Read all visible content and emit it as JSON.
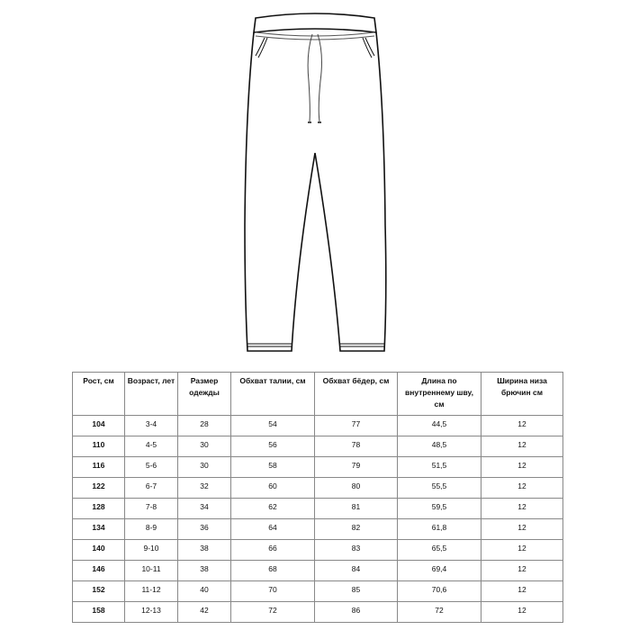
{
  "illustration": {
    "name": "pants-technical-drawing"
  },
  "table": {
    "headers": [
      "Рост, см",
      "Возраст, лет",
      "Размер одежды",
      "Обхват талии, см",
      "Обхват бёдер, см",
      "Длина по внутреннему шву, см",
      "Ширина низа брючин см"
    ],
    "rows": [
      [
        "104",
        "3-4",
        "28",
        "54",
        "77",
        "44,5",
        "12"
      ],
      [
        "110",
        "4-5",
        "30",
        "56",
        "78",
        "48,5",
        "12"
      ],
      [
        "116",
        "5-6",
        "30",
        "58",
        "79",
        "51,5",
        "12"
      ],
      [
        "122",
        "6-7",
        "32",
        "60",
        "80",
        "55,5",
        "12"
      ],
      [
        "128",
        "7-8",
        "34",
        "62",
        "81",
        "59,5",
        "12"
      ],
      [
        "134",
        "8-9",
        "36",
        "64",
        "82",
        "61,8",
        "12"
      ],
      [
        "140",
        "9-10",
        "38",
        "66",
        "83",
        "65,5",
        "12"
      ],
      [
        "146",
        "10-11",
        "38",
        "68",
        "84",
        "69,4",
        "12"
      ],
      [
        "152",
        "11-12",
        "40",
        "70",
        "85",
        "70,6",
        "12"
      ],
      [
        "158",
        "12-13",
        "42",
        "72",
        "86",
        "72",
        "12"
      ]
    ]
  }
}
